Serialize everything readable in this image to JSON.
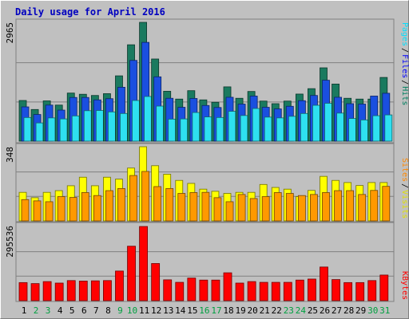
{
  "chart_data": [
    {
      "type": "bar",
      "title": "Daily usage for April 2016",
      "categories": [
        "1",
        "2",
        "3",
        "4",
        "5",
        "6",
        "7",
        "8",
        "9",
        "10",
        "11",
        "12",
        "13",
        "14",
        "15",
        "16",
        "17",
        "18",
        "19",
        "20",
        "21",
        "22",
        "23",
        "24",
        "25",
        "26",
        "27",
        "28",
        "29",
        "30",
        "31"
      ],
      "weekend_days": [
        "2",
        "3",
        "9",
        "10",
        "16",
        "17",
        "23",
        "24",
        "30",
        "31"
      ],
      "ymax_label": "2965",
      "ylim": [
        0,
        2965
      ],
      "legend_text": [
        "Pages",
        "/",
        "Files",
        "/",
        "Hits"
      ],
      "series": [
        {
          "name": "Hits",
          "color": "#1a7a5f",
          "values": [
            1015,
            790,
            1005,
            900,
            1200,
            1170,
            1140,
            1185,
            1630,
            2405,
            2965,
            2050,
            1245,
            1050,
            1260,
            1030,
            970,
            1355,
            1070,
            1240,
            1000,
            935,
            1000,
            1175,
            1310,
            1830,
            1425,
            1070,
            1050,
            1050,
            1590
          ]
        },
        {
          "name": "Files",
          "color": "#1a4fe0",
          "values": [
            855,
            665,
            900,
            775,
            1090,
            1090,
            1030,
            1060,
            1345,
            2015,
            2465,
            1605,
            1070,
            845,
            1065,
            890,
            840,
            1095,
            925,
            1125,
            845,
            805,
            870,
            1010,
            1140,
            1520,
            1095,
            935,
            925,
            1125,
            1195
          ]
        },
        {
          "name": "Pages",
          "color": "#2ee0f0",
          "values": [
            590,
            455,
            580,
            555,
            630,
            760,
            765,
            730,
            690,
            1015,
            1115,
            875,
            550,
            555,
            715,
            605,
            590,
            745,
            640,
            815,
            600,
            580,
            620,
            690,
            895,
            945,
            700,
            565,
            530,
            635,
            655
          ]
        }
      ]
    },
    {
      "type": "bar",
      "categories": [
        "1",
        "2",
        "3",
        "4",
        "5",
        "6",
        "7",
        "8",
        "9",
        "10",
        "11",
        "12",
        "13",
        "14",
        "15",
        "16",
        "17",
        "18",
        "19",
        "20",
        "21",
        "22",
        "23",
        "24",
        "25",
        "26",
        "27",
        "28",
        "29",
        "30",
        "31"
      ],
      "ymax_label": "348",
      "ylim": [
        0,
        348
      ],
      "legend_text": [
        "Sites",
        "/",
        "Visits"
      ],
      "series": [
        {
          "name": "Visits",
          "color": "#ffff00",
          "values": [
            134,
            109,
            134,
            142,
            165,
            205,
            165,
            205,
            196,
            248,
            348,
            259,
            219,
            190,
            176,
            149,
            139,
            129,
            134,
            134,
            171,
            157,
            149,
            114,
            143,
            209,
            190,
            180,
            166,
            180,
            180
          ]
        },
        {
          "name": "Sites",
          "color": "#ff9900",
          "values": [
            100,
            94,
            90,
            114,
            110,
            133,
            119,
            142,
            152,
            213,
            232,
            161,
            152,
            129,
            133,
            134,
            109,
            90,
            124,
            105,
            114,
            133,
            129,
            119,
            124,
            133,
            142,
            142,
            124,
            143,
            162
          ]
        }
      ]
    },
    {
      "type": "bar",
      "categories": [
        "1",
        "2",
        "3",
        "4",
        "5",
        "6",
        "7",
        "8",
        "9",
        "10",
        "11",
        "12",
        "13",
        "14",
        "15",
        "16",
        "17",
        "18",
        "19",
        "20",
        "21",
        "22",
        "23",
        "24",
        "25",
        "26",
        "27",
        "28",
        "29",
        "30",
        "31"
      ],
      "ymax_label": "295536",
      "ylim": [
        0,
        295536
      ],
      "legend_text": [
        "KBytes"
      ],
      "series": [
        {
          "name": "KBytes",
          "color": "#ff0000",
          "values": [
            72000,
            68000,
            76000,
            70000,
            80000,
            78000,
            79000,
            80000,
            118000,
            217000,
            295536,
            148000,
            83000,
            73000,
            90000,
            82000,
            82000,
            111000,
            70000,
            76000,
            73000,
            73000,
            73000,
            82000,
            86000,
            134000,
            84000,
            72000,
            72000,
            80000,
            102000
          ]
        }
      ]
    }
  ]
}
